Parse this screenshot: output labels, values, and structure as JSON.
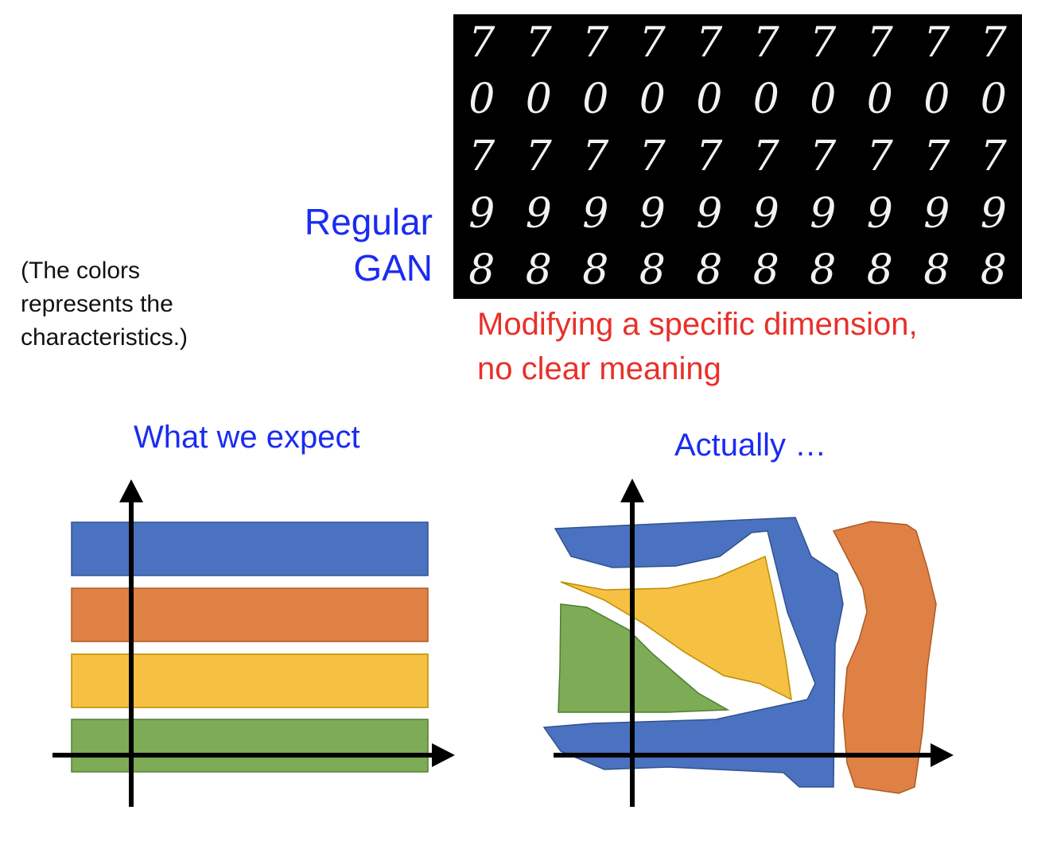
{
  "note": [
    "(The colors",
    "represents the",
    "characteristics.)"
  ],
  "gan_label": [
    "Regular",
    "GAN"
  ],
  "digit_rows": [
    [
      "7",
      "7",
      "7",
      "7",
      "7",
      "7",
      "7",
      "7",
      "7",
      "7"
    ],
    [
      "0",
      "0",
      "0",
      "0",
      "0",
      "0",
      "0",
      "0",
      "0",
      "0"
    ],
    [
      "7",
      "7",
      "7",
      "7",
      "7",
      "7",
      "7",
      "7",
      "7",
      "7"
    ],
    [
      "9",
      "9",
      "9",
      "9",
      "9",
      "9",
      "9",
      "9",
      "9",
      "9"
    ],
    [
      "8",
      "8",
      "8",
      "8",
      "8",
      "8",
      "8",
      "8",
      "8",
      "8"
    ]
  ],
  "caption": [
    "Modifying a specific dimension,",
    "no clear meaning"
  ],
  "expect_title": "What we expect",
  "actual_title": "Actually …",
  "colors": {
    "blue": "#4a72c0",
    "orange": "#df8145",
    "yellow": "#f6c143",
    "green": "#7eab55",
    "title_blue": "#1a2cf0",
    "caption_red": "#e8302a"
  },
  "expect_bands": [
    "blue",
    "orange",
    "yellow",
    "green"
  ],
  "actual_regions": [
    "blue",
    "yellow",
    "green",
    "orange"
  ]
}
